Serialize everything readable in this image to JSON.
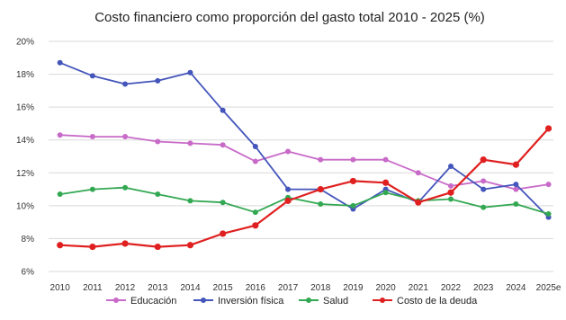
{
  "chart_data": {
    "type": "line",
    "title": "Costo financiero como proporción del gasto total 2010 - 2025 (%)",
    "xlabel": "",
    "ylabel": "",
    "categories": [
      "2010",
      "2011",
      "2012",
      "2013",
      "2014",
      "2015",
      "2016",
      "2017",
      "2018",
      "2019",
      "2020",
      "2021",
      "2022",
      "2023",
      "2024",
      "2025e"
    ],
    "y_ticks": [
      "6%",
      "8%",
      "10%",
      "12%",
      "14%",
      "16%",
      "18%",
      "20%"
    ],
    "ylim": [
      6,
      20
    ],
    "grid": true,
    "legend_position": "bottom",
    "series": [
      {
        "name": "Educación",
        "color": "#c86ac8",
        "values": [
          14.3,
          14.2,
          14.2,
          13.9,
          13.8,
          13.7,
          12.7,
          13.3,
          12.8,
          12.8,
          12.8,
          12.0,
          11.2,
          11.5,
          11.0,
          11.3
        ]
      },
      {
        "name": "Inversión física",
        "color": "#4455bb",
        "values": [
          18.7,
          17.9,
          17.4,
          17.6,
          18.1,
          15.8,
          13.6,
          11.0,
          11.0,
          9.8,
          11.0,
          10.2,
          12.4,
          11.0,
          11.3,
          9.3
        ]
      },
      {
        "name": "Salud",
        "color": "#33a852",
        "values": [
          10.7,
          11.0,
          11.1,
          10.7,
          10.3,
          10.2,
          9.6,
          10.5,
          10.1,
          10.0,
          10.8,
          10.3,
          10.4,
          9.9,
          10.1,
          9.5
        ]
      },
      {
        "name": "Costo de la deuda",
        "color": "#e02020",
        "values": [
          7.6,
          7.5,
          7.7,
          7.5,
          7.6,
          8.3,
          8.8,
          10.3,
          11.0,
          11.5,
          11.4,
          10.2,
          10.8,
          12.8,
          12.5,
          14.7
        ]
      }
    ]
  }
}
